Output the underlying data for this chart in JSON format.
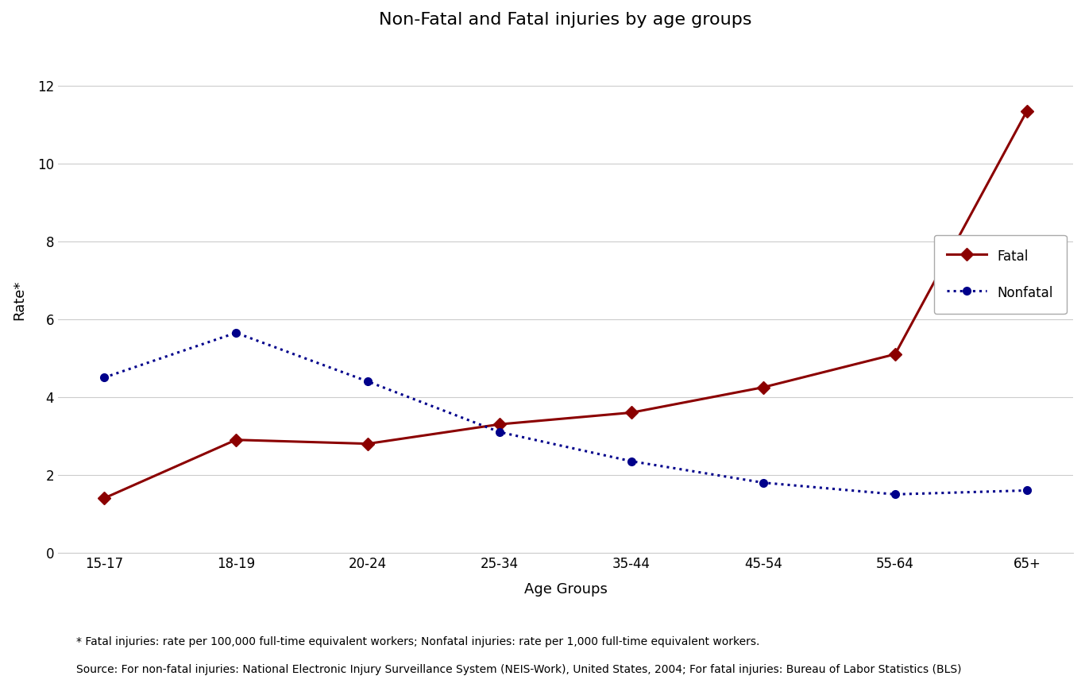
{
  "title": "Non-Fatal and Fatal injuries by age groups",
  "xlabel": "Age Groups",
  "ylabel": "Rate*",
  "age_groups": [
    "15-17",
    "18-19",
    "20-24",
    "25-34",
    "35-44",
    "45-54",
    "55-64",
    "65+"
  ],
  "fatal_values": [
    1.4,
    2.9,
    2.8,
    3.3,
    3.6,
    4.25,
    5.1,
    11.35
  ],
  "nonfatal_values": [
    4.5,
    5.65,
    4.4,
    3.1,
    2.35,
    1.8,
    1.5,
    1.6
  ],
  "fatal_color": "#8B0000",
  "nonfatal_color": "#00008B",
  "ylim": [
    0,
    13
  ],
  "yticks": [
    0,
    2,
    4,
    6,
    8,
    10,
    12
  ],
  "footnote1": "* Fatal injuries: rate per 100,000 full-time equivalent workers; Nonfatal injuries: rate per 1,000 full-time equivalent workers.",
  "footnote2": "Source: For non-fatal injuries: National Electronic Injury Surveillance System (NEIS-Work), United States, 2004; For fatal injuries: Bureau of Labor Statistics (BLS)",
  "background_color": "#ffffff",
  "legend_fatal_label": "Fatal",
  "legend_nonfatal_label": "Nonfatal"
}
